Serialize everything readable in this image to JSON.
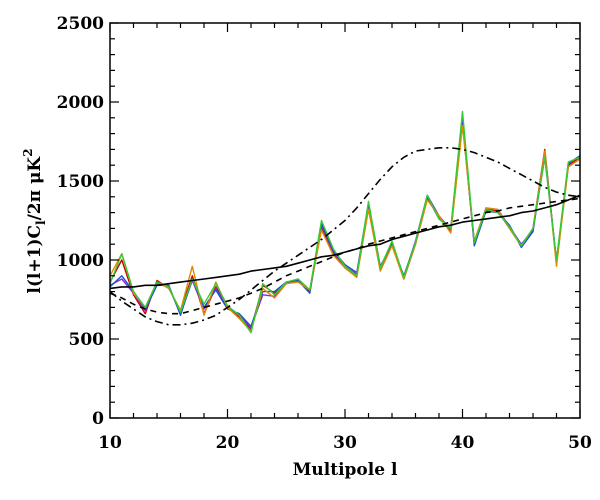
{
  "chart_data": {
    "type": "line",
    "title": "",
    "xlabel": "Multipole l",
    "ylabel": "l(l+1)C_l/2π μK²",
    "ylabel_parts": {
      "main": "l(l+1)C",
      "sub": "l",
      "mid": "/2π  μK",
      "sup": "2"
    },
    "xlim": [
      10,
      50
    ],
    "ylim": [
      0,
      2500
    ],
    "xticks": [
      10,
      20,
      30,
      40,
      50
    ],
    "xtick_labels": [
      "10",
      "20",
      "30",
      "40",
      "50"
    ],
    "yticks": [
      0,
      500,
      1000,
      1500,
      2000,
      2500
    ],
    "ytick_labels": [
      "0",
      "500",
      "1000",
      "1500",
      "2000",
      "2500"
    ],
    "grid": false,
    "legend": "none",
    "x": [
      10,
      11,
      12,
      13,
      14,
      15,
      16,
      17,
      18,
      19,
      20,
      21,
      22,
      23,
      24,
      25,
      26,
      27,
      28,
      29,
      30,
      31,
      32,
      33,
      34,
      35,
      36,
      37,
      38,
      39,
      40,
      41,
      42,
      43,
      44,
      45,
      46,
      47,
      48,
      49,
      50
    ],
    "series": [
      {
        "color": "#cc0000",
        "style": "solid",
        "values": [
          860,
          1000,
          780,
          660,
          870,
          820,
          680,
          900,
          660,
          830,
          710,
          640,
          560,
          840,
          790,
          860,
          870,
          800,
          1200,
          1040,
          950,
          900,
          1330,
          940,
          1100,
          880,
          1100,
          1390,
          1270,
          1180,
          1880,
          1110,
          1320,
          1310,
          1200,
          1090,
          1200,
          1700,
          980,
          1600,
          1650
        ]
      },
      {
        "color": "#8a2be2",
        "style": "solid",
        "values": [
          840,
          880,
          790,
          680,
          850,
          830,
          660,
          870,
          690,
          820,
          700,
          650,
          570,
          780,
          770,
          850,
          880,
          810,
          1220,
          1050,
          960,
          910,
          1350,
          950,
          1110,
          890,
          1120,
          1410,
          1280,
          1190,
          1870,
          1100,
          1330,
          1320,
          1210,
          1100,
          1190,
          1650,
          1000,
          1590,
          1640
        ]
      },
      {
        "color": "#1f4fcc",
        "style": "solid",
        "values": [
          830,
          900,
          800,
          690,
          840,
          840,
          650,
          880,
          700,
          810,
          690,
          660,
          580,
          800,
          800,
          860,
          870,
          790,
          1230,
          1060,
          970,
          920,
          1360,
          960,
          1100,
          900,
          1110,
          1400,
          1260,
          1200,
          1900,
          1090,
          1310,
          1300,
          1220,
          1080,
          1180,
          1680,
          990,
          1610,
          1660
        ]
      },
      {
        "color": "#e08a00",
        "style": "solid",
        "values": [
          900,
          1040,
          790,
          700,
          860,
          820,
          680,
          960,
          650,
          860,
          700,
          630,
          550,
          820,
          760,
          850,
          860,
          810,
          1190,
          1030,
          950,
          890,
          1320,
          930,
          1090,
          880,
          1100,
          1380,
          1280,
          1170,
          1850,
          1120,
          1330,
          1320,
          1200,
          1090,
          1200,
          1690,
          960,
          1590,
          1640
        ]
      },
      {
        "color": "#33cc33",
        "style": "solid",
        "values": [
          850,
          1040,
          800,
          700,
          860,
          830,
          670,
          880,
          720,
          850,
          710,
          650,
          540,
          850,
          780,
          860,
          880,
          810,
          1250,
          1070,
          960,
          900,
          1370,
          950,
          1120,
          890,
          1110,
          1410,
          1260,
          1200,
          1940,
          1110,
          1320,
          1300,
          1210,
          1090,
          1200,
          1650,
          1000,
          1620,
          1650
        ]
      },
      {
        "color": "#000000",
        "style": "solid",
        "values": [
          820,
          830,
          830,
          840,
          840,
          850,
          860,
          870,
          880,
          890,
          900,
          910,
          930,
          940,
          950,
          960,
          980,
          1000,
          1020,
          1030,
          1050,
          1070,
          1090,
          1100,
          1130,
          1150,
          1170,
          1190,
          1210,
          1220,
          1240,
          1250,
          1260,
          1270,
          1280,
          1300,
          1310,
          1330,
          1350,
          1380,
          1410
        ]
      },
      {
        "color": "#000000",
        "style": "dashed",
        "values": [
          790,
          760,
          720,
          690,
          670,
          660,
          660,
          680,
          700,
          720,
          740,
          760,
          790,
          820,
          860,
          900,
          930,
          960,
          990,
          1020,
          1050,
          1070,
          1100,
          1120,
          1140,
          1160,
          1180,
          1200,
          1220,
          1240,
          1260,
          1280,
          1300,
          1310,
          1330,
          1340,
          1350,
          1360,
          1370,
          1380,
          1390
        ]
      },
      {
        "color": "#000000",
        "style": "dashdot",
        "values": [
          800,
          740,
          690,
          640,
          610,
          590,
          590,
          600,
          620,
          650,
          700,
          750,
          810,
          870,
          930,
          980,
          1030,
          1080,
          1130,
          1190,
          1250,
          1330,
          1420,
          1510,
          1590,
          1650,
          1690,
          1700,
          1710,
          1710,
          1700,
          1680,
          1650,
          1620,
          1580,
          1540,
          1500,
          1460,
          1430,
          1410,
          1400
        ]
      }
    ]
  }
}
